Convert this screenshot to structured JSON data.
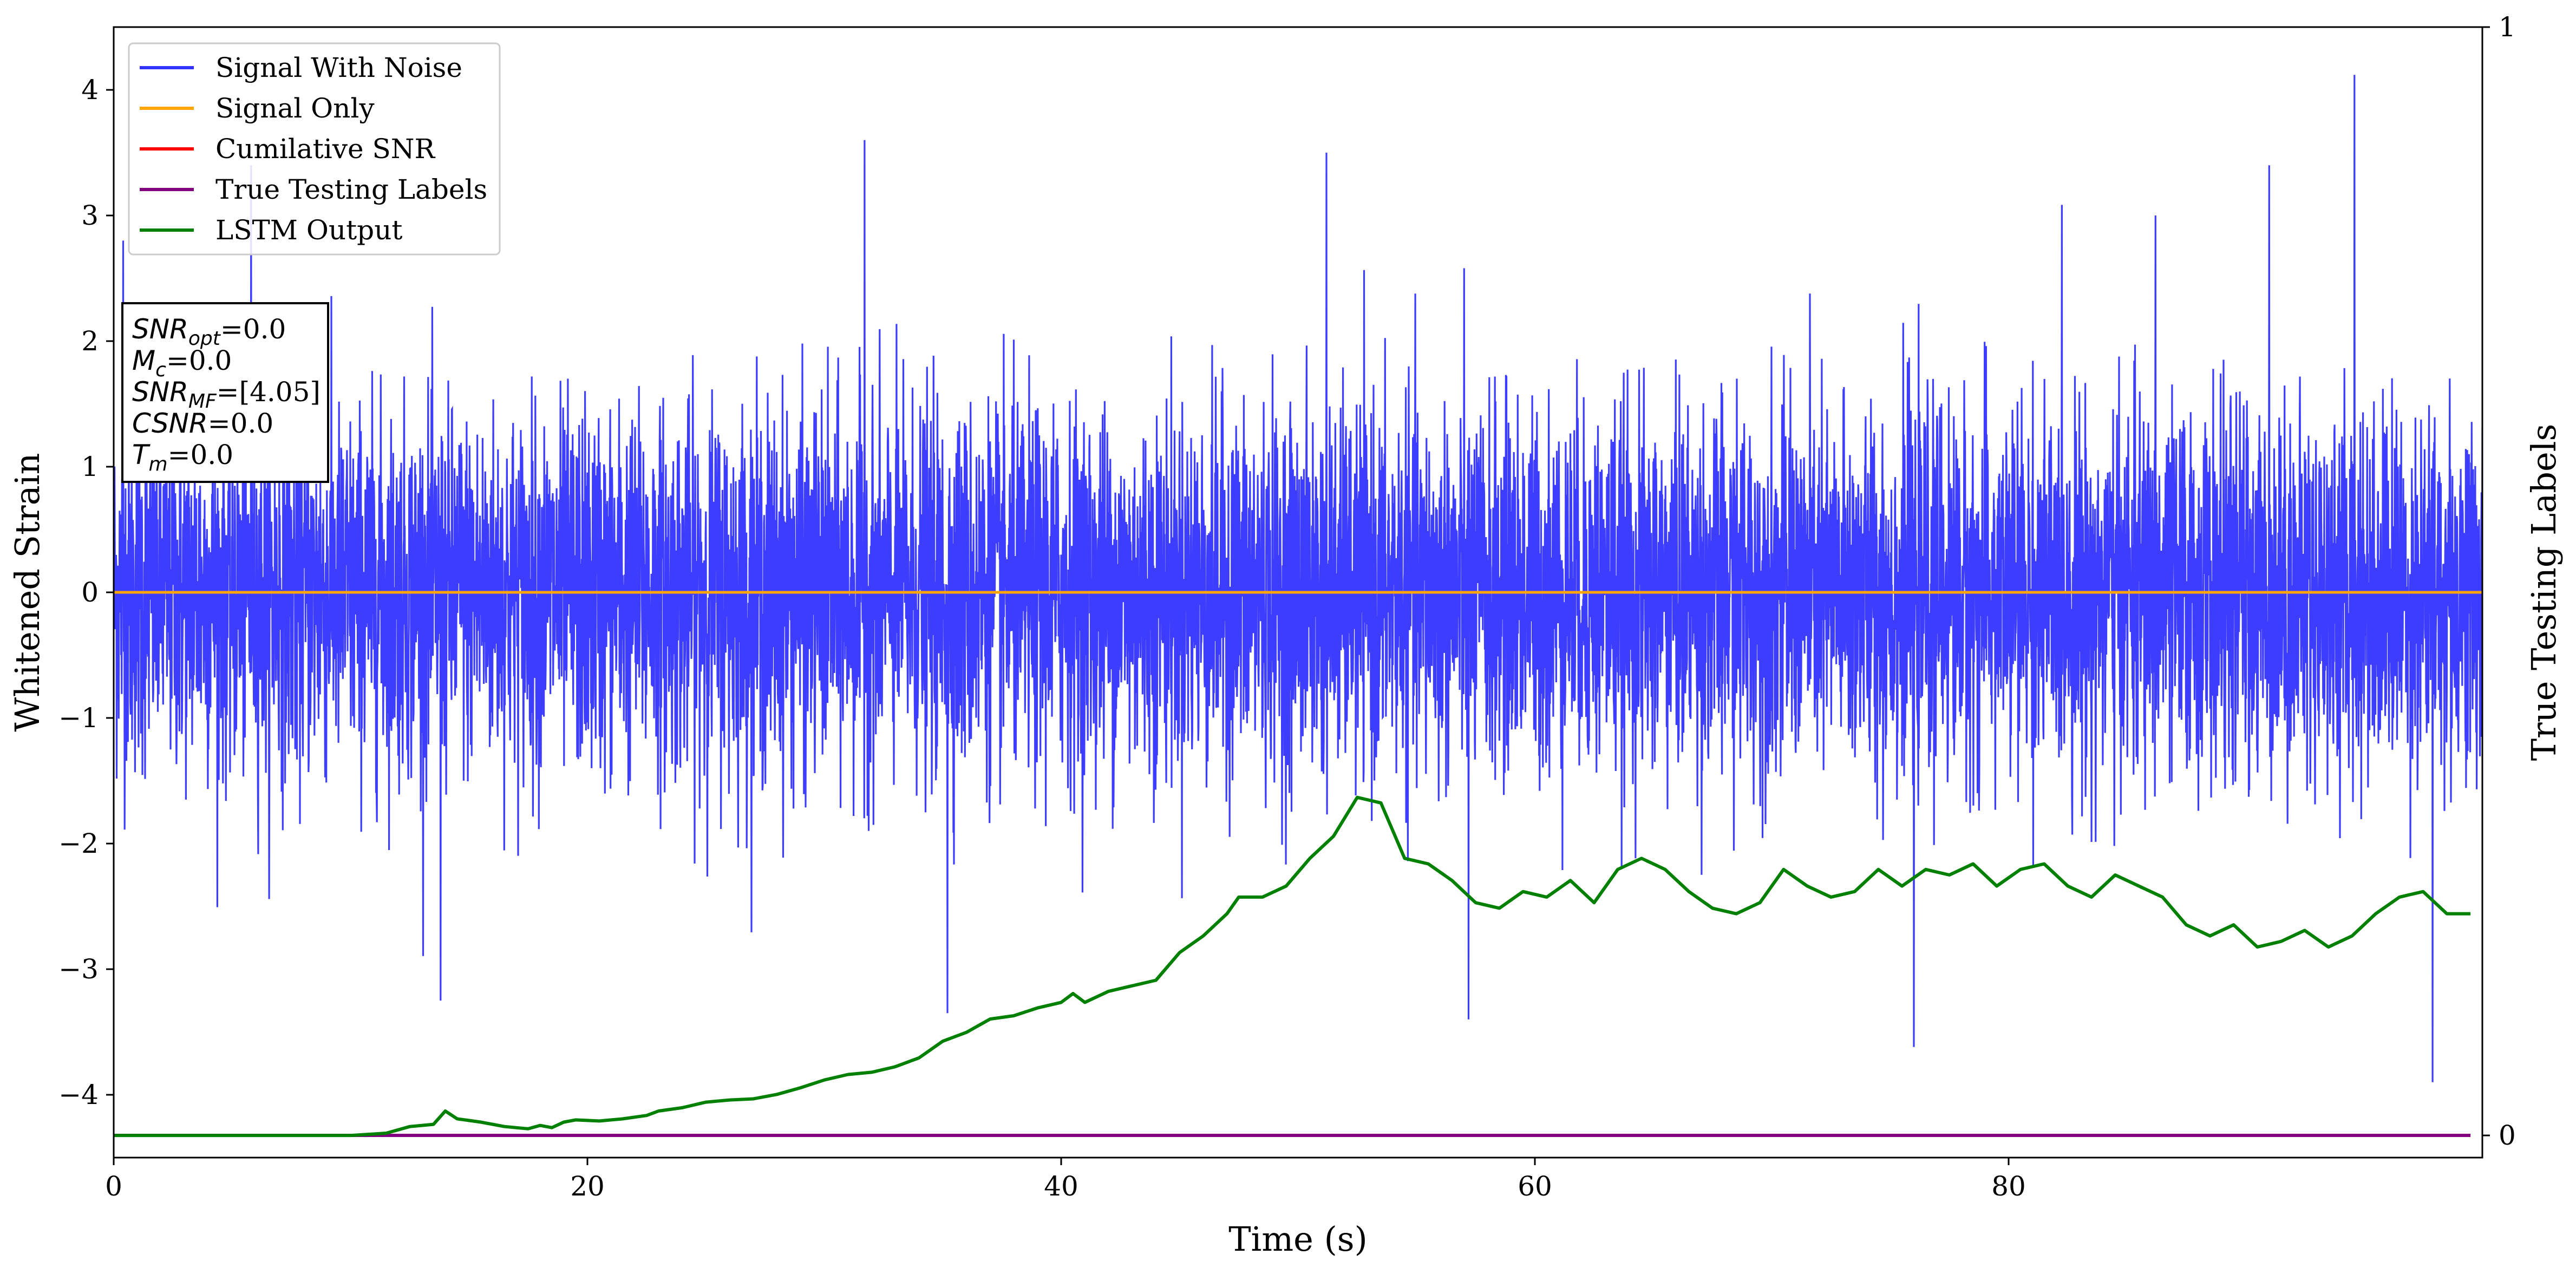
{
  "chart_data": {
    "type": "line",
    "xlabel": "Time (s)",
    "ylabel": "Whitened Strain",
    "y2label": "True Testing Labels",
    "xlim": [
      0,
      100
    ],
    "ylim": [
      -4.5,
      4.5
    ],
    "y2lim": [
      -0.02,
      1
    ],
    "x_ticks": [
      0,
      20,
      40,
      60,
      80
    ],
    "y_ticks": [
      -4,
      -3,
      -2,
      -1,
      0,
      1,
      2,
      3,
      4
    ],
    "y2_ticks": [
      0,
      1
    ],
    "legend_position": "top-left",
    "series": [
      {
        "name": "Signal With Noise",
        "color": "#3333ff",
        "axis": "left",
        "description": "dense Gaussian-like whitened noise; typical amplitude within about ±1.5, spikes reaching about +4.1 and -3.9",
        "x_range": [
          0,
          100
        ],
        "peaks": [
          {
            "x": 0.4,
            "y": 2.8
          },
          {
            "x": 5.8,
            "y": 3.4
          },
          {
            "x": 31.7,
            "y": 3.6
          },
          {
            "x": 94.6,
            "y": 4.12
          },
          {
            "x": 91.0,
            "y": 3.4
          },
          {
            "x": 13.8,
            "y": -3.25
          },
          {
            "x": 35.2,
            "y": -3.35
          },
          {
            "x": 76.0,
            "y": -3.62
          },
          {
            "x": 97.9,
            "y": -3.9
          },
          {
            "x": 86.2,
            "y": 3.0
          },
          {
            "x": 51.2,
            "y": 3.5
          },
          {
            "x": 57.2,
            "y": -3.4
          }
        ]
      },
      {
        "name": "Signal Only",
        "color": "#ffa500",
        "axis": "left",
        "x": [
          0,
          100
        ],
        "y": [
          0,
          0
        ]
      },
      {
        "name": "Cumilative SNR",
        "color": "#ff0000",
        "axis": "left",
        "x": [],
        "y": []
      },
      {
        "name": "True Testing Labels",
        "color": "#800080",
        "axis": "right",
        "x": [
          0,
          99.5
        ],
        "y": [
          0,
          0
        ]
      },
      {
        "name": "LSTM Output",
        "color": "#008000",
        "axis": "right",
        "x": [
          0,
          5,
          10,
          11.5,
          12.5,
          13.5,
          14,
          14.5,
          15.5,
          16.5,
          17.5,
          18,
          18.5,
          19,
          19.5,
          20.5,
          21.5,
          22.5,
          23,
          24,
          25,
          26,
          27,
          28,
          29,
          30,
          31,
          32,
          33,
          34,
          35,
          36,
          37,
          38,
          39,
          40,
          40.5,
          41,
          42,
          43,
          44,
          45,
          46,
          47,
          47.5,
          48.5,
          49.5,
          50.5,
          51.5,
          52.5,
          53.5,
          54.5,
          55.5,
          56.5,
          57.5,
          58.5,
          59.5,
          60.5,
          61.5,
          62.5,
          63.5,
          64.5,
          65.5,
          66.5,
          67.5,
          68.5,
          69.5,
          70.5,
          71.5,
          72.5,
          73.5,
          74.5,
          75.5,
          76.5,
          77.5,
          78.5,
          79.5,
          80.5,
          81.5,
          82.5,
          83.5,
          84.5,
          85.5,
          86.5,
          87.5,
          88.5,
          89.5,
          90.5,
          91.5,
          92.5,
          93.5,
          94.5,
          95.5,
          96.5,
          97.5,
          98.5,
          99.5
        ],
        "y": [
          0,
          0,
          0,
          0.002,
          0.008,
          0.01,
          0.022,
          0.015,
          0.012,
          0.008,
          0.006,
          0.009,
          0.007,
          0.012,
          0.014,
          0.013,
          0.015,
          0.018,
          0.022,
          0.025,
          0.03,
          0.032,
          0.033,
          0.037,
          0.043,
          0.05,
          0.055,
          0.057,
          0.062,
          0.07,
          0.085,
          0.093,
          0.105,
          0.108,
          0.115,
          0.12,
          0.128,
          0.12,
          0.13,
          0.135,
          0.14,
          0.165,
          0.18,
          0.2,
          0.215,
          0.215,
          0.225,
          0.25,
          0.27,
          0.305,
          0.3,
          0.25,
          0.245,
          0.23,
          0.21,
          0.205,
          0.22,
          0.215,
          0.23,
          0.21,
          0.24,
          0.25,
          0.24,
          0.22,
          0.205,
          0.2,
          0.21,
          0.24,
          0.225,
          0.215,
          0.22,
          0.24,
          0.225,
          0.24,
          0.235,
          0.245,
          0.225,
          0.24,
          0.245,
          0.225,
          0.215,
          0.235,
          0.225,
          0.215,
          0.19,
          0.18,
          0.19,
          0.17,
          0.175,
          0.185,
          0.17,
          0.18,
          0.2,
          0.215,
          0.22,
          0.2,
          0.2
        ]
      }
    ]
  },
  "info_box": {
    "lines": [
      {
        "sym": "SNR",
        "sub": "opt",
        "val": "=0.0"
      },
      {
        "sym": "M",
        "sub": "c",
        "val": "=0.0"
      },
      {
        "sym": "SNR",
        "sub": "MF",
        "val": "=[4.05]"
      },
      {
        "sym": "CSNR",
        "sub": "",
        "val": "=0.0"
      },
      {
        "sym": "T",
        "sub": "m",
        "val": "=0.0"
      }
    ]
  }
}
